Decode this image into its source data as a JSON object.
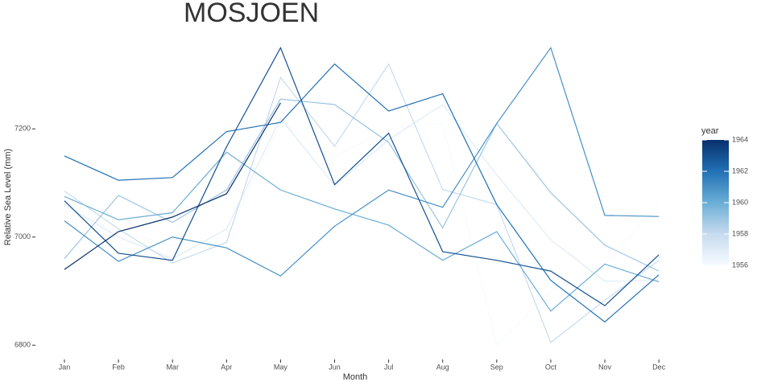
{
  "chart_data": {
    "type": "line",
    "title": "MOSJOEN",
    "x_label": "Month",
    "y_label": "Relative Sea Level (mm)",
    "categories": [
      "Jan",
      "Feb",
      "Mar",
      "Apr",
      "May",
      "Jun",
      "Jul",
      "Aug",
      "Sep",
      "Oct",
      "Nov",
      "Dec"
    ],
    "ylim": [
      6784,
      7364
    ],
    "yticks": [
      6800,
      7000,
      7200
    ],
    "colorbar": {
      "title": "year",
      "lim": [
        1956,
        1964
      ],
      "ticks": [
        1956,
        1958,
        1960,
        1962,
        1964
      ],
      "colors": [
        "#f7fbff",
        "#c6dbef",
        "#6baed6",
        "#2171b5",
        "#08306b"
      ]
    },
    "series": [
      {
        "year": 1956,
        "values": [
          7050,
          7010,
          6985,
          7000,
          7210,
          7150,
          7200,
          7210,
          6800,
          6900,
          6950,
          7060
        ]
      },
      {
        "year": 1957,
        "values": [
          7060,
          7000,
          6960,
          7015,
          7220,
          7095,
          7180,
          7245,
          7115,
          6995,
          6918,
          6920
        ]
      },
      {
        "year": 1958,
        "values": [
          7085,
          7015,
          6952,
          6990,
          7295,
          7168,
          7320,
          7088,
          7060,
          6805,
          6883,
          6957
        ]
      },
      {
        "year": 1959,
        "values": [
          6960,
          7077,
          7027,
          7087,
          7255,
          7245,
          7175,
          7017,
          7210,
          7082,
          6985,
          6937
        ]
      },
      {
        "year": 1960,
        "values": [
          7075,
          7032,
          7045,
          7157,
          7087,
          7052,
          7022,
          6957,
          7010,
          6863,
          6950,
          6917
        ]
      },
      {
        "year": 1961,
        "values": [
          7030,
          6955,
          7000,
          6980,
          6928,
          7020,
          7087,
          7055,
          7210,
          7350,
          7040,
          7038
        ]
      },
      {
        "year": 1962,
        "values": [
          7150,
          7105,
          7110,
          7195,
          7212,
          7320,
          7233,
          7265,
          7060,
          6920,
          6843,
          6930
        ]
      },
      {
        "year": 1963,
        "values": [
          7067,
          6970,
          6957,
          7167,
          7350,
          7097,
          7192,
          6973,
          6957,
          6937,
          6873,
          6967
        ]
      },
      {
        "year": 1964,
        "values": [
          6940,
          7010,
          7037,
          7080,
          7248,
          null,
          null,
          null,
          null,
          null,
          null,
          null
        ]
      }
    ]
  }
}
